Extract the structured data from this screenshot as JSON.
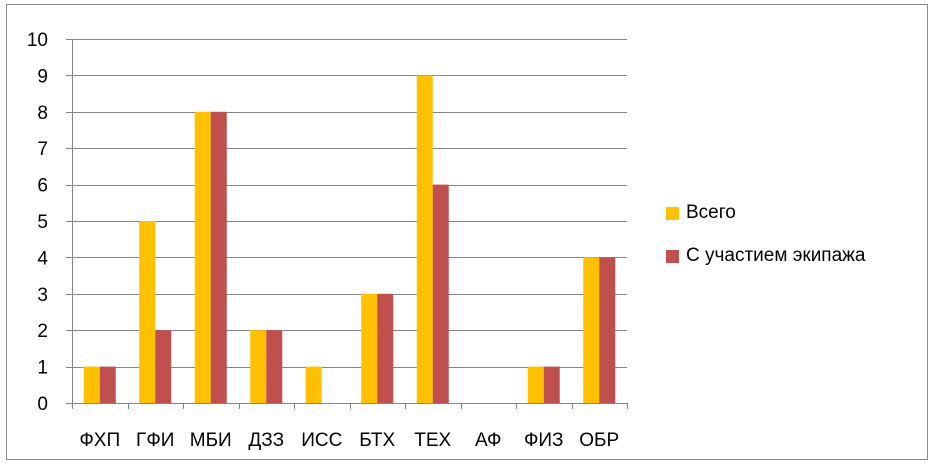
{
  "chart_data": {
    "type": "bar",
    "categories": [
      "ФХП",
      "ГФИ",
      "МБИ",
      "ДЗЗ",
      "ИСС",
      "БТХ",
      "ТЕХ",
      "АФ",
      "ФИЗ",
      "ОБР"
    ],
    "series": [
      {
        "name": "Всего",
        "color": "#FFC000",
        "values": [
          1,
          5,
          8,
          2,
          1,
          3,
          9,
          0,
          1,
          4
        ]
      },
      {
        "name": "С участием экипажа",
        "color": "#C0504D",
        "values": [
          1,
          2,
          8,
          2,
          0,
          3,
          6,
          0,
          1,
          4
        ]
      }
    ],
    "ylim": [
      0,
      10
    ],
    "yticks": [
      "0",
      "1",
      "2",
      "3",
      "4",
      "5",
      "6",
      "7",
      "8",
      "9",
      "10"
    ],
    "grid": true,
    "legend_position": "right"
  }
}
